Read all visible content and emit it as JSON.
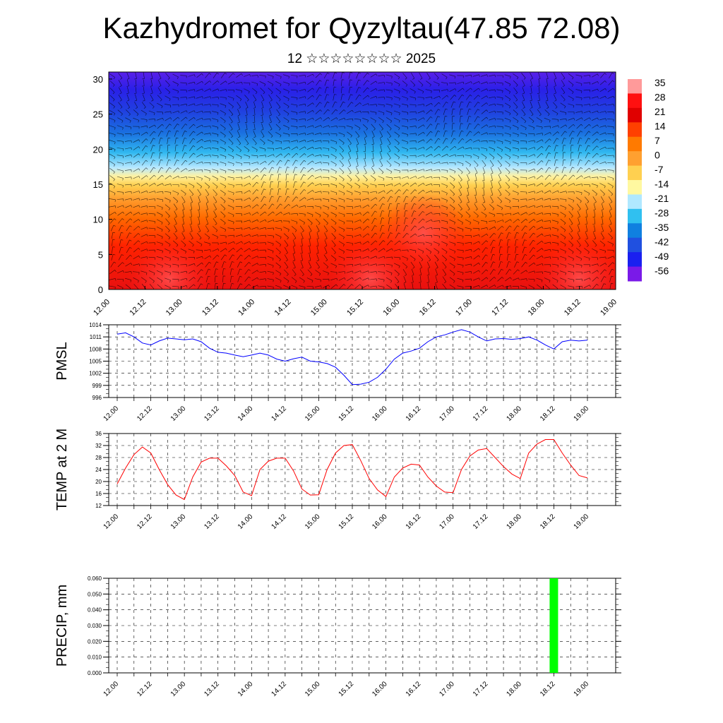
{
  "header": {
    "title": "Kazhydromet for Qyzyltau(47.85 72.08)",
    "subtitle": "12 ☆☆☆☆☆☆☆☆ 2025"
  },
  "chart_data": [
    {
      "type": "heatmap",
      "name": "vertical-temperature-cross-section",
      "x_tick_labels": [
        "12.00",
        "12.12",
        "13.00",
        "13.12",
        "14.00",
        "14.12",
        "15.00",
        "15.12",
        "16.00",
        "16.12",
        "17.00",
        "17.12",
        "18.00",
        "18.12",
        "19.00"
      ],
      "ylim": [
        0,
        31
      ],
      "y_tick_labels": [
        "0",
        "5",
        "10",
        "15",
        "20",
        "25",
        "30"
      ],
      "y_ticks": [
        0,
        5,
        10,
        15,
        20,
        25,
        30
      ],
      "colorbar_labels": [
        "35",
        "28",
        "21",
        "14",
        "7",
        "0",
        "-7",
        "-14",
        "-21",
        "-28",
        "-35",
        "-42",
        "-49",
        "-56"
      ],
      "colorbar_colors": [
        "#ff9a9a",
        "#ff1010",
        "#e00000",
        "#ff4000",
        "#ff7a00",
        "#ffa030",
        "#ffd050",
        "#fff8a0",
        "#b0e8ff",
        "#30c0f0",
        "#1080e0",
        "#2050e0",
        "#1a20f0",
        "#7a1ae8"
      ],
      "wind_barbs": true
    },
    {
      "type": "line",
      "name": "pmsl",
      "ylabel": "PMSL",
      "x_tick_labels": [
        "12.00",
        "12.12",
        "13.00",
        "13.12",
        "14.00",
        "14.12",
        "15.00",
        "15.12",
        "16.00",
        "16.12",
        "17.00",
        "17.12",
        "18.00",
        "18.12",
        "19.00"
      ],
      "y_tick_labels": [
        "996",
        "999",
        "1002",
        "1005",
        "1008",
        "1011",
        "1014"
      ],
      "ylim": [
        996,
        1014
      ],
      "x": [
        0,
        3,
        6,
        9,
        12,
        15,
        18,
        21,
        24,
        27,
        30,
        33,
        36,
        39,
        42,
        45,
        48,
        51,
        54,
        57,
        60,
        63,
        66,
        69,
        72,
        75,
        78,
        81,
        84,
        87,
        90,
        93,
        96,
        99,
        102,
        105,
        108,
        111,
        114,
        117,
        120,
        123,
        126,
        129,
        132,
        135,
        138,
        141,
        144,
        147,
        150,
        153,
        156,
        159,
        162,
        165,
        168
      ],
      "values": [
        1011.7,
        1012.0,
        1011.0,
        1009.5,
        1009.0,
        1010.0,
        1010.7,
        1010.5,
        1010.3,
        1010.5,
        1009.8,
        1008.2,
        1007.2,
        1007.0,
        1006.5,
        1006.1,
        1006.5,
        1007.0,
        1006.5,
        1005.5,
        1005.0,
        1005.6,
        1006.0,
        1005.0,
        1004.8,
        1004.4,
        1003.5,
        1001.5,
        999.2,
        999.3,
        999.8,
        1001.0,
        1003.0,
        1005.5,
        1007.0,
        1007.5,
        1008.2,
        1009.8,
        1011.0,
        1011.5,
        1012.2,
        1012.8,
        1012.2,
        1011.0,
        1010.0,
        1010.5,
        1010.6,
        1010.4,
        1010.6,
        1011.0,
        1010.2,
        1009.0,
        1008.0,
        1009.8,
        1010.2,
        1010.0,
        1010.2
      ],
      "color": "#0000ff"
    },
    {
      "type": "line",
      "name": "temp-2m",
      "ylabel": "TEMP at 2 M",
      "x_tick_labels": [
        "12.00",
        "12.12",
        "13.00",
        "13.12",
        "14.00",
        "14.12",
        "15.00",
        "15.12",
        "16.00",
        "16.12",
        "17.00",
        "17.12",
        "18.00",
        "18.12",
        "19.00"
      ],
      "y_tick_labels": [
        "12",
        "16",
        "20",
        "24",
        "28",
        "32",
        "36"
      ],
      "ylim": [
        12,
        36
      ],
      "x": [
        0,
        3,
        6,
        9,
        12,
        15,
        18,
        21,
        24,
        27,
        30,
        33,
        36,
        39,
        42,
        45,
        48,
        51,
        54,
        57,
        60,
        63,
        66,
        69,
        72,
        75,
        78,
        81,
        84,
        87,
        90,
        93,
        96,
        99,
        102,
        105,
        108,
        111,
        114,
        117,
        120,
        123,
        126,
        129,
        132,
        135,
        138,
        141,
        144,
        147,
        150,
        153,
        156,
        159,
        162,
        165,
        168
      ],
      "values": [
        19.2,
        24.5,
        29.0,
        31.5,
        29.5,
        24.0,
        19.0,
        15.5,
        14.0,
        21.5,
        26.5,
        27.8,
        27.8,
        25.2,
        22.0,
        16.5,
        15.3,
        24.0,
        26.8,
        27.8,
        27.8,
        23.5,
        17.5,
        15.5,
        15.6,
        24.0,
        29.5,
        32.0,
        32.3,
        27.0,
        21.0,
        17.2,
        15.0,
        21.5,
        24.5,
        25.8,
        25.5,
        21.5,
        18.5,
        16.5,
        16.3,
        24.0,
        28.5,
        30.5,
        31.0,
        28.0,
        25.0,
        22.5,
        21.0,
        29.5,
        32.5,
        34.0,
        34.0,
        29.5,
        25.5,
        22.0,
        21.2
      ],
      "color": "#ff0000"
    },
    {
      "type": "bar",
      "name": "precipitation",
      "ylabel": "PRECIP, mm",
      "x_tick_labels": [
        "12.00",
        "12.12",
        "13.00",
        "13.12",
        "14.00",
        "14.12",
        "15.00",
        "15.12",
        "16.00",
        "16.12",
        "17.00",
        "17.12",
        "18.00",
        "18.12",
        "19.00"
      ],
      "y_tick_labels": [
        "0.000",
        "0.010",
        "0.020",
        "0.030",
        "0.040",
        "0.050",
        "0.060"
      ],
      "ylim": [
        0,
        0.06
      ],
      "bars": [
        {
          "x": 156,
          "value": 0.06
        }
      ],
      "color": "#00ff00"
    }
  ]
}
